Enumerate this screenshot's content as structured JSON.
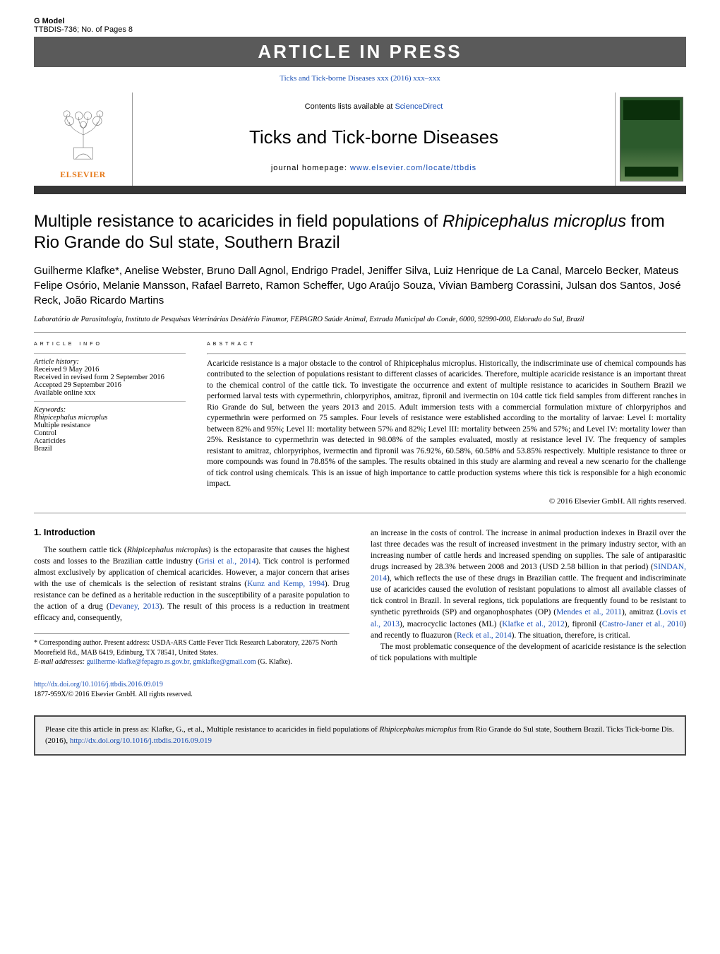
{
  "gmodel": {
    "line1": "G Model",
    "line2": "TTBDIS-736;   No. of Pages 8"
  },
  "aip_label": "ARTICLE IN PRESS",
  "journal_link_top": "Ticks and Tick-borne Diseases xxx (2016) xxx–xxx",
  "header": {
    "contents_prefix": "Contents lists available at ",
    "contents_link": "ScienceDirect",
    "journal_title": "Ticks and Tick-borne Diseases",
    "homepage_prefix": "journal homepage: ",
    "homepage_url": "www.elsevier.com/locate/ttbdis",
    "elsevier_name": "ELSEVIER"
  },
  "title_html": "Multiple resistance to acaricides in field populations of <em>Rhipicephalus microplus</em> from Rio Grande do Sul state, Southern Brazil",
  "authors": "Guilherme Klafke*, Anelise Webster, Bruno Dall Agnol, Endrigo Pradel, Jeniffer Silva, Luiz Henrique de La Canal, Marcelo Becker, Mateus Felipe Osório, Melanie Mansson, Rafael Barreto, Ramon Scheffer, Ugo Araújo Souza, Vivian Bamberg Corassini, Julsan dos Santos, José Reck, João Ricardo Martins",
  "affiliation": "Laboratório de Parasitologia, Instituto de Pesquisas Veterinárias Desidério Finamor, FEPAGRO Saúde Animal, Estrada Municipal do Conde, 6000, 92990-000, Eldorado do Sul, Brazil",
  "article_info": {
    "header": "ARTICLE INFO",
    "history_label": "Article history:",
    "history": [
      "Received 9 May 2016",
      "Received in revised form 2 September 2016",
      "Accepted 29 September 2016",
      "Available online xxx"
    ],
    "keywords_label": "Keywords:",
    "keywords": [
      "Rhipicephalus microplus",
      "Multiple resistance",
      "Control",
      "Acaricides",
      "Brazil"
    ]
  },
  "abstract": {
    "header": "ABSTRACT",
    "text": "Acaricide resistance is a major obstacle to the control of Rhipicephalus microplus. Historically, the indiscriminate use of chemical compounds has contributed to the selection of populations resistant to different classes of acaricides. Therefore, multiple acaricide resistance is an important threat to the chemical control of the cattle tick. To investigate the occurrence and extent of multiple resistance to acaricides in Southern Brazil we performed larval tests with cypermethrin, chlorpyriphos, amitraz, fipronil and ivermectin on 104 cattle tick field samples from different ranches in Rio Grande do Sul, between the years 2013 and 2015. Adult immersion tests with a commercial formulation mixture of chlorpyriphos and cypermethrin were performed on 75 samples. Four levels of resistance were established according to the mortality of larvae: Level I: mortality between 82% and 95%; Level II: mortality between 57% and 82%; Level III: mortality between 25% and 57%; and Level IV: mortality lower than 25%. Resistance to cypermethrin was detected in 98.08% of the samples evaluated, mostly at resistance level IV. The frequency of samples resistant to amitraz, chlorpyriphos, ivermectin and fipronil was 76.92%, 60.58%, 60.58% and 53.85% respectively. Multiple resistance to three or more compounds was found in 78.85% of the samples. The results obtained in this study are alarming and reveal a new scenario for the challenge of tick control using chemicals. This is an issue of high importance to cattle production systems where this tick is responsible for a high economic impact.",
    "copyright": "© 2016 Elsevier GmbH. All rights reserved."
  },
  "intro": {
    "heading": "1.  Introduction",
    "left_html": "The southern cattle tick (<em>Rhipicephalus microplus</em>) is the ectoparasite that causes the highest costs and losses to the Brazilian cattle industry (<span class=\"ref\">Grisi et al., 2014</span>). Tick control is performed almost exclusively by application of chemical acaricides. However, a major concern that arises with the use of chemicals is the selection of resistant strains (<span class=\"ref\">Kunz and Kemp, 1994</span>). Drug resistance can be defined as a heritable reduction in the susceptibility of a parasite population to the action of a drug (<span class=\"ref\">Devaney, 2013</span>). The result of this process is a reduction in treatment efficacy and, consequently,",
    "right_p1_html": "an increase in the costs of control. The increase in animal production indexes in Brazil over the last three decades was the result of increased investment in the primary industry sector, with an increasing number of cattle herds and increased spending on supplies. The sale of antiparasitic drugs increased by 28.3% between 2008 and 2013 (USD 2.58 billion in that period) (<span class=\"ref\">SINDAN, 2014</span>), which reflects the use of these drugs in Brazilian cattle. The frequent and indiscriminate use of acaricides caused the evolution of resistant populations to almost all available classes of tick control in Brazil. In several regions, tick populations are frequently found to be resistant to synthetic pyrethroids (SP) and organophosphates (OP) (<span class=\"ref\">Mendes et al., 2011</span>), amitraz (<span class=\"ref\">Lovis et al., 2013</span>), macrocyclic lactones (ML) (<span class=\"ref\">Klafke et al., 2012</span>), fipronil (<span class=\"ref\">Castro-Janer et al., 2010</span>) and recently to fluazuron (<span class=\"ref\">Reck et al., 2014</span>). The situation, therefore, is critical.",
    "right_p2": "The most problematic consequence of the development of acaricide resistance is the selection of tick populations with multiple"
  },
  "footnotes": {
    "corresponding": "* Corresponding author. Present address: USDA-ARS Cattle Fever Tick Research Laboratory, 22675 North Moorefield Rd., MAB 6419, Edinburg, TX 78541, United States.",
    "email_label": "E-mail addresses: ",
    "emails": "guilherme-klafke@fepagro.rs.gov.br, gmklafke@gmail.com",
    "email_tail": " (G. Klafke)."
  },
  "doi": {
    "url": "http://dx.doi.org/10.1016/j.ttbdis.2016.09.019",
    "issn_line": "1877-959X/© 2016 Elsevier GmbH. All rights reserved."
  },
  "citebox_html": "Please cite this article in press as: Klafke, G., et al., Multiple resistance to acaricides in field populations of <em>Rhipicephalus microplus</em> from Rio Grande do Sul state, Southern Brazil. Ticks Tick-borne Dis. (2016), <a href=\"#\">http://dx.doi.org/10.1016/j.ttbdis.2016.09.019</a>",
  "colors": {
    "link": "#1a4fb5",
    "bar_bg": "#5a5a5a",
    "header_border": "#363636",
    "elsevier_orange": "#e67817",
    "citebox_bg": "#ececec"
  }
}
